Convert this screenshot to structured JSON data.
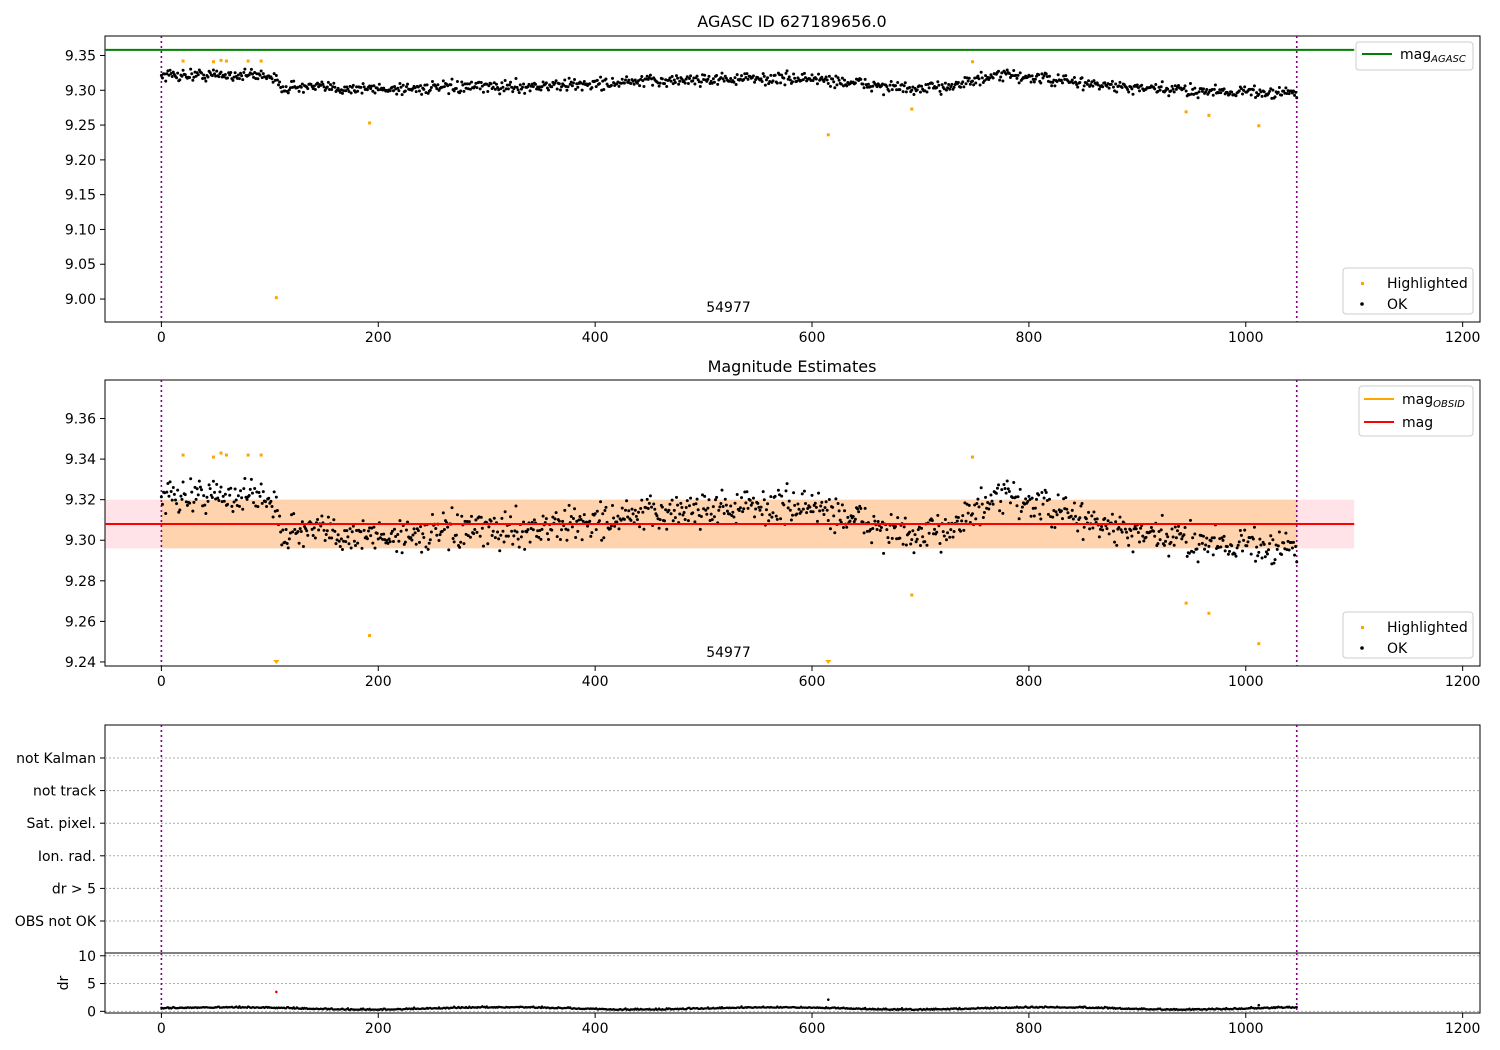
{
  "chart_data": [
    {
      "type": "scatter",
      "title": "AGASC ID 627189656.0",
      "xlabel": "",
      "ylabel": "",
      "xlim": [
        -52,
        1216
      ],
      "ylim": [
        8.967,
        9.378
      ],
      "yticks": [
        9.0,
        9.05,
        9.1,
        9.15,
        9.2,
        9.25,
        9.3,
        9.35
      ],
      "xticks": [
        0,
        200,
        400,
        600,
        800,
        1000,
        1200
      ],
      "obs_lines": [
        0,
        1047
      ],
      "obsid_label": {
        "text": "54977",
        "x": 523
      },
      "mag_agasc": 9.358,
      "legend_upper": [
        "mag_AGASC"
      ],
      "legend_upper_parts": {
        "base": "mag",
        "sub": "AGASC"
      },
      "legend_lower": [
        "Highlighted",
        "OK"
      ],
      "series": [
        {
          "name": "OK",
          "color": "#000000",
          "n": 1048,
          "x_range": [
            0,
            1047
          ],
          "segments": [
            [
              0,
              9.322
            ],
            [
              100,
              9.322
            ],
            [
              110,
              9.305
            ],
            [
              200,
              9.302
            ],
            [
              350,
              9.306
            ],
            [
              500,
              9.316
            ],
            [
              600,
              9.317
            ],
            [
              700,
              9.3
            ],
            [
              780,
              9.322
            ],
            [
              900,
              9.302
            ],
            [
              1047,
              9.296
            ]
          ],
          "noise": 0.011
        },
        {
          "name": "Highlighted",
          "color": "#FFA500",
          "points": [
            [
              20,
              9.342
            ],
            [
              48,
              9.341
            ],
            [
              55,
              9.343
            ],
            [
              60,
              9.342
            ],
            [
              80,
              9.342
            ],
            [
              92,
              9.342
            ],
            [
              106,
              9.002
            ],
            [
              192,
              9.253
            ],
            [
              615,
              9.236
            ],
            [
              692,
              9.273
            ],
            [
              748,
              9.341
            ],
            [
              945,
              9.269
            ],
            [
              966,
              9.264
            ],
            [
              1012,
              9.249
            ]
          ]
        }
      ]
    },
    {
      "type": "scatter",
      "title": "Magnitude Estimates",
      "xlabel": "",
      "ylabel": "",
      "xlim": [
        -52,
        1216
      ],
      "ylim": [
        9.238,
        9.379
      ],
      "yticks": [
        9.24,
        9.26,
        9.28,
        9.3,
        9.32,
        9.34,
        9.36
      ],
      "xticks": [
        0,
        200,
        400,
        600,
        800,
        1000,
        1200
      ],
      "obs_lines": [
        0,
        1047
      ],
      "obsid_label": {
        "text": "54977",
        "x": 523
      },
      "mag": 9.308,
      "mag_band": [
        9.296,
        9.32
      ],
      "legend_upper": [
        "mag_OBSID",
        "mag"
      ],
      "legend_upper_parts": {
        "base": "mag",
        "sub": "OBSID",
        "second": "mag"
      },
      "legend_lower": [
        "Highlighted",
        "OK"
      ],
      "off_scale_markers": [
        106,
        615
      ],
      "series": [
        {
          "name": "OK",
          "color": "#000000"
        },
        {
          "name": "Highlighted",
          "color": "#FFA500",
          "points": [
            [
              20,
              9.342
            ],
            [
              48,
              9.341
            ],
            [
              55,
              9.343
            ],
            [
              60,
              9.342
            ],
            [
              80,
              9.342
            ],
            [
              92,
              9.342
            ],
            [
              192,
              9.253
            ],
            [
              692,
              9.273
            ],
            [
              748,
              9.341
            ],
            [
              945,
              9.269
            ],
            [
              966,
              9.264
            ],
            [
              1012,
              9.249
            ]
          ]
        }
      ]
    },
    {
      "type": "scatter",
      "title": "",
      "flags": [
        "not Kalman",
        "not track",
        "Sat. pixel.",
        "Ion. rad.",
        "dr > 5",
        "OBS not OK"
      ],
      "grid": true,
      "obs_lines": [
        0,
        1047
      ]
    },
    {
      "type": "scatter",
      "title": "",
      "xlabel": "",
      "ylabel": "dr",
      "xlim": [
        -52,
        1216
      ],
      "ylim": [
        -0.3,
        10.5
      ],
      "yticks": [
        0,
        5,
        10
      ],
      "xticks": [
        0,
        200,
        400,
        600,
        800,
        1000,
        1200
      ],
      "grid": true,
      "obs_lines": [
        0,
        1047
      ],
      "series": [
        {
          "name": "OK",
          "color": "#000000",
          "n": 1048,
          "x_range": [
            0,
            1047
          ],
          "base": 0.45,
          "noise": 0.25
        },
        {
          "name": "outlier",
          "color": "#000000",
          "points": [
            [
              615,
              2.1
            ],
            [
              1012,
              1.1
            ]
          ]
        },
        {
          "name": "Highlighted",
          "color": "#FF0000",
          "points": [
            [
              106,
              3.5
            ]
          ]
        }
      ]
    }
  ]
}
